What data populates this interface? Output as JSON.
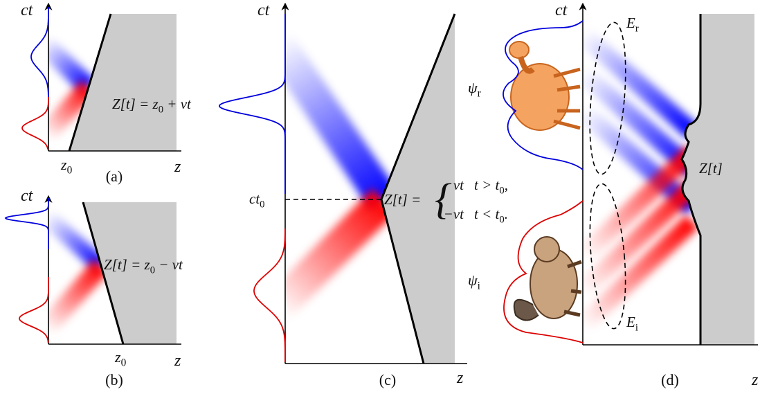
{
  "panels": [
    {
      "y_label": "ct",
      "x_label": "z",
      "tick": [
        "z",
        {
          "sub": "0"
        }
      ],
      "caption": "(a)",
      "equation": [
        "Z[t] = z",
        {
          "sub": "0"
        },
        " + vt"
      ]
    },
    {
      "y_label": "ct",
      "x_label": "z",
      "tick": [
        "z",
        {
          "sub": "0"
        }
      ],
      "caption": "(b)",
      "equation": [
        "Z[t] = z",
        {
          "sub": "0"
        },
        " − vt"
      ]
    },
    {
      "y_label": "ct",
      "x_label": "z",
      "tick": [
        "ct",
        {
          "sub": "0"
        }
      ],
      "caption": "(c)",
      "equation_prefix": "Z[t] =",
      "cases": [
        {
          "expr": "vt",
          "cond": [
            "t > t",
            {
              "sub": "0"
            },
            ","
          ]
        },
        {
          "expr": "−vt",
          "cond": [
            "t < t",
            {
              "sub": "0"
            },
            "."
          ]
        }
      ]
    },
    {
      "y_label": "ct",
      "x_label": "z",
      "caption": "(d)",
      "wall_label": "Z[t]",
      "reflected_energy": [
        "E",
        {
          "sub": "r"
        }
      ],
      "incident_energy": [
        "E",
        {
          "sub": "i"
        }
      ],
      "reflected_wave": [
        "ψ",
        {
          "sub": "r"
        }
      ],
      "incident_wave": [
        "ψ",
        {
          "sub": "i"
        }
      ]
    }
  ]
}
